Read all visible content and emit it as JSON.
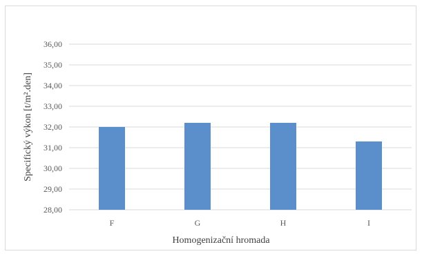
{
  "chart_data": {
    "type": "bar",
    "title": "",
    "categories": [
      "F",
      "G",
      "H",
      "I"
    ],
    "values": [
      32.0,
      32.2,
      32.2,
      31.3
    ],
    "xlabel": "Homogenizační hromada",
    "ylabel": "Specifický výkon [t/m².den]",
    "ylim": [
      28,
      36
    ],
    "yticks": [
      "28,00",
      "29,00",
      "30,00",
      "31,00",
      "32,00",
      "33,00",
      "34,00",
      "35,00",
      "36,00"
    ],
    "grid": true,
    "legend": "none",
    "bar_color": "#5b8fcc",
    "grid_color": "#d9d9d9"
  }
}
